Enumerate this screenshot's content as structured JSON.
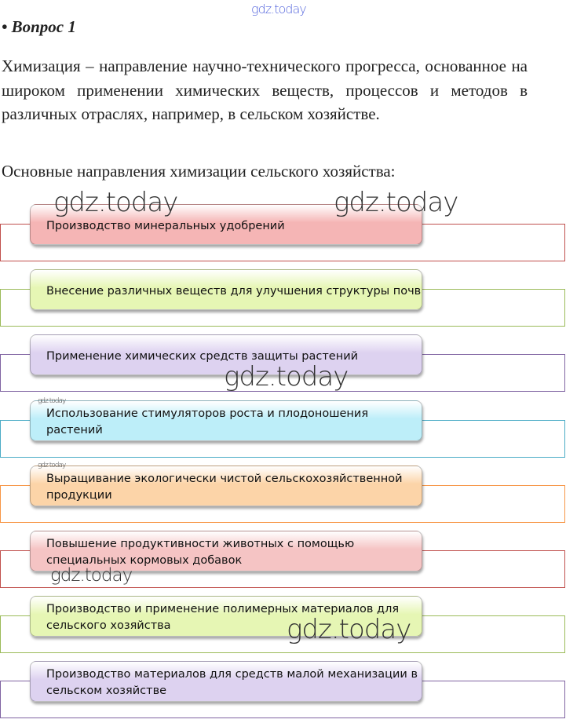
{
  "watermark": "gdz.today",
  "heading": "• Вопрос 1",
  "paragraph": "Химизация – направление научно-технического прогресса, основанное на широком применении химических веществ, процессов и методов в различных отраслях, например, в сельском хозяйстве.",
  "subheading": "Основные направления химизации сельского хозяйства:",
  "items": [
    {
      "label": "Производство минеральных удобрений",
      "border": "#c0504d",
      "fill": "#f5b5b5"
    },
    {
      "label": "Внесение различных веществ для улучшения структуры почв",
      "border": "#9bbb59",
      "fill": "#e6f6b4"
    },
    {
      "label": "Применение химических средств защиты растений",
      "border": "#8064a2",
      "fill": "#ddd2f0"
    },
    {
      "label": "Использование стимуляторов роста и плодоношения растений",
      "border": "#4bacc6",
      "fill": "#bdeef9"
    },
    {
      "label": "Выращивание экологически чистой сельскохозяйственной продукции",
      "border": "#f79646",
      "fill": "#fcd4a8"
    },
    {
      "label": "Повышение продуктивности животных с помощью специальных кормовых добавок",
      "border": "#c0504d",
      "fill": "#f5c4c4"
    },
    {
      "label": "Производство и применение полимерных материалов для сельского хозяйства",
      "border": "#9bbb59",
      "fill": "#e6f6b4"
    },
    {
      "label": "Производство материалов для средств малой механизации в сельском хозяйстве",
      "border": "#8064a2",
      "fill": "#ddd2f0"
    }
  ]
}
